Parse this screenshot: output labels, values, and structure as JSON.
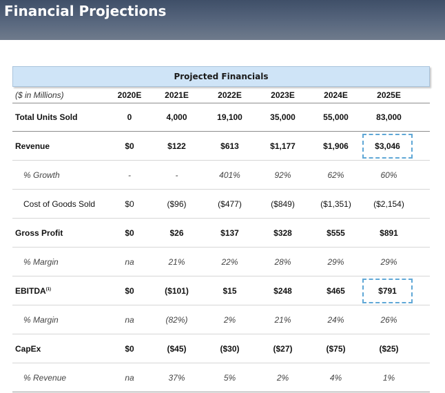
{
  "header": {
    "title": "Financial Projections"
  },
  "table": {
    "banner": "Projected Financials",
    "unit_label": "($ in Millions)",
    "years": [
      "2020E",
      "2021E",
      "2022E",
      "2023E",
      "2024E",
      "2025E"
    ],
    "rows": [
      {
        "label": "Total Units Sold",
        "values": [
          "0",
          "4,000",
          "19,100",
          "35,000",
          "55,000",
          "83,000"
        ]
      },
      {
        "label": "Revenue",
        "values": [
          "$0",
          "$122",
          "$613",
          "$1,177",
          "$1,906",
          "$3,046"
        ]
      },
      {
        "label": "% Growth",
        "values": [
          "-",
          "-",
          "401%",
          "92%",
          "62%",
          "60%"
        ]
      },
      {
        "label": "Cost of Goods Sold",
        "values": [
          "$0",
          "($96)",
          "($477)",
          "($849)",
          "($1,351)",
          "($2,154)"
        ]
      },
      {
        "label": "Gross Profit",
        "values": [
          "$0",
          "$26",
          "$137",
          "$328",
          "$555",
          "$891"
        ]
      },
      {
        "label": "% Margin",
        "values": [
          "na",
          "21%",
          "22%",
          "28%",
          "29%",
          "29%"
        ]
      },
      {
        "label": "EBITDA",
        "footnote": "(1)",
        "values": [
          "$0",
          "($101)",
          "$15",
          "$248",
          "$465",
          "$791"
        ]
      },
      {
        "label": "% Margin",
        "values": [
          "na",
          "(82%)",
          "2%",
          "21%",
          "24%",
          "26%"
        ]
      },
      {
        "label": "CapEx",
        "values": [
          "$0",
          "($45)",
          "($30)",
          "($27)",
          "($75)",
          "($25)"
        ]
      },
      {
        "label": "% Revenue",
        "values": [
          "na",
          "37%",
          "5%",
          "2%",
          "4%",
          "1%"
        ]
      }
    ]
  },
  "colors": {
    "header_bar": "#4b5a72",
    "banner_fill": "#cfe4f7",
    "highlight_border": "#5fa7d6"
  }
}
